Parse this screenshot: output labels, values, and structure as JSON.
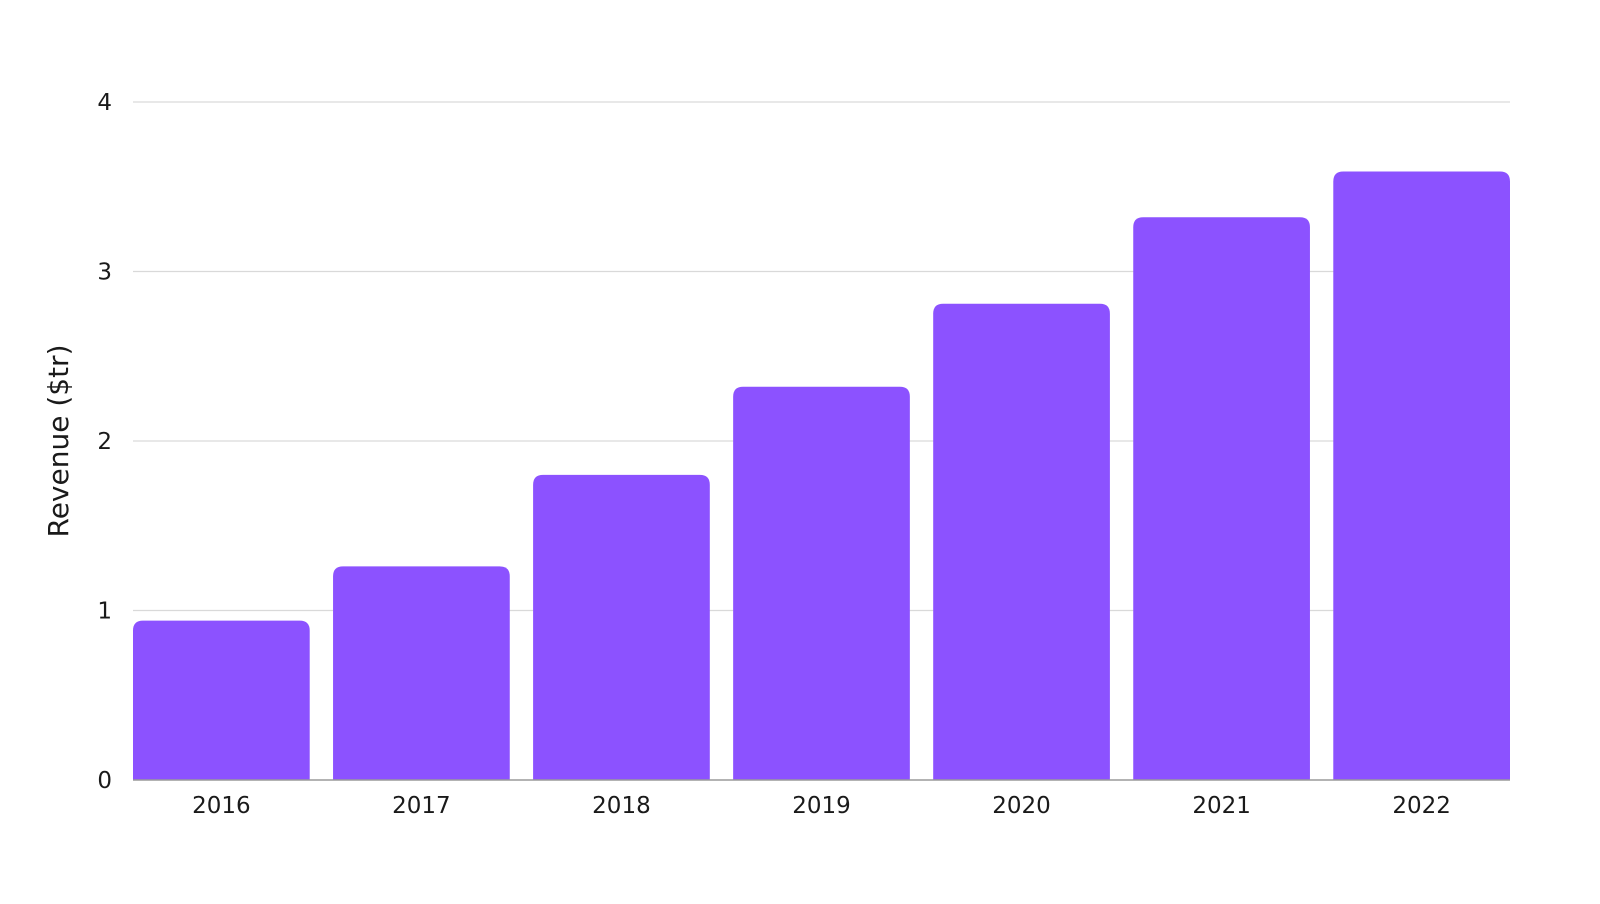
{
  "chart_data": {
    "type": "bar",
    "title": "",
    "xlabel": "",
    "ylabel": "Revenue ($tr)",
    "categories": [
      "2016",
      "2017",
      "2018",
      "2019",
      "2020",
      "2021",
      "2022"
    ],
    "values": [
      0.94,
      1.26,
      1.8,
      2.32,
      2.81,
      3.32,
      3.59
    ],
    "ylim": [
      0,
      4
    ],
    "yticks": [
      "0",
      "1",
      "2",
      "3",
      "4"
    ],
    "grid": true,
    "legend": "none",
    "colors": {
      "bar": "#8c52ff",
      "grid": "#d9d9d9",
      "baseline": "#9a9a9a"
    }
  }
}
